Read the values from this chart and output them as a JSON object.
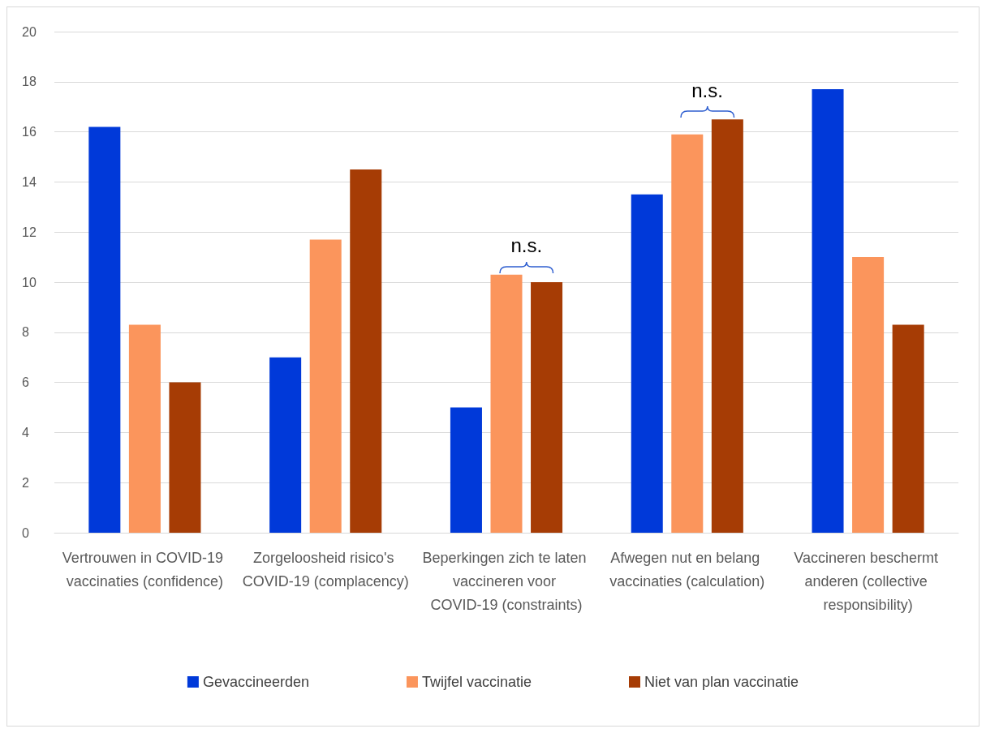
{
  "chart_data": {
    "type": "bar",
    "categories": [
      "Vertrouwen in COVID-19 vaccinaties (confidence)",
      "Zorgeloosheid risico's COVID-19 (complacency)",
      "Beperkingen zich te laten vaccineren voor COVID-19 (constraints)",
      "Afwegen nut en belang vaccinaties (calculation)",
      "Vaccineren beschermt anderen (collective responsibility)"
    ],
    "series": [
      {
        "name": "Gevaccineerden",
        "color": "#0039d9",
        "values": [
          16.2,
          7.0,
          5.0,
          13.5,
          17.7
        ]
      },
      {
        "name": "Twijfel vaccinatie",
        "color": "#fb955c",
        "values": [
          8.3,
          11.7,
          10.3,
          15.9,
          11.0
        ]
      },
      {
        "name": "Niet van plan vaccinatie",
        "color": "#a63c05",
        "values": [
          6.0,
          14.5,
          10.0,
          16.5,
          8.3
        ]
      }
    ],
    "ylim": [
      0,
      20
    ],
    "yticks": [
      0,
      2,
      4,
      6,
      8,
      10,
      12,
      14,
      16,
      18,
      20
    ],
    "grid": "y",
    "legend": "bottom",
    "annotations": [
      "n.s.",
      "n.s."
    ]
  }
}
